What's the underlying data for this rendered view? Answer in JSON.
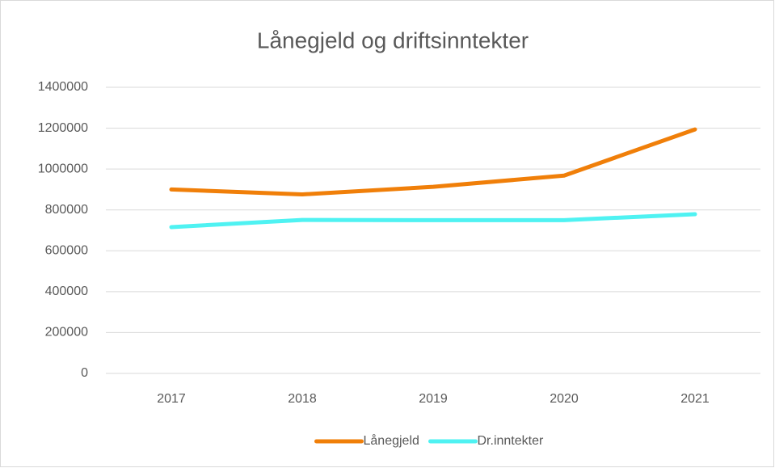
{
  "chart_data": {
    "type": "line",
    "title": "Lånegjeld og driftsinntekter",
    "categories": [
      "2017",
      "2018",
      "2019",
      "2020",
      "2021"
    ],
    "series": [
      {
        "name": "Lånegjeld",
        "color": "#f07f09",
        "values": [
          900000,
          876000,
          913000,
          968000,
          1194000
        ]
      },
      {
        "name": "Dr.inntekter",
        "color": "#4ff2f2",
        "values": [
          716000,
          751000,
          750000,
          750000,
          779000
        ]
      }
    ],
    "ylim": [
      0,
      1400000
    ],
    "yticks": [
      0,
      200000,
      400000,
      600000,
      800000,
      1000000,
      1200000,
      1400000
    ],
    "grid": true,
    "legend": "bottom"
  }
}
